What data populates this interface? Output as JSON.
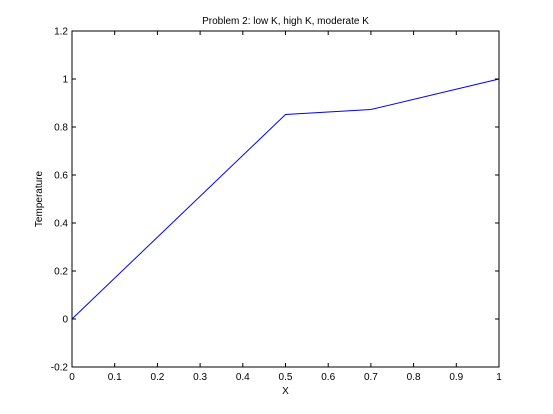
{
  "chart_data": {
    "type": "line",
    "title": "Problem 2: low K, high K, moderate K",
    "xlabel": "X",
    "ylabel": "Temperature",
    "xlim": [
      0,
      1
    ],
    "ylim": [
      -0.2,
      1.2
    ],
    "xticks": [
      0,
      0.1,
      0.2,
      0.3,
      0.4,
      0.5,
      0.6,
      0.7,
      0.8,
      0.9,
      1
    ],
    "xtick_labels": [
      "0",
      "0.1",
      "0.2",
      "0.3",
      "0.4",
      "0.5",
      "0.6",
      "0.7",
      "0.8",
      "0.9",
      "1"
    ],
    "yticks": [
      -0.2,
      0,
      0.2,
      0.4,
      0.6,
      0.8,
      1,
      1.2
    ],
    "ytick_labels": [
      "-0.2",
      "0",
      "0.2",
      "0.4",
      "0.6",
      "0.8",
      "1",
      "1.2"
    ],
    "grid": false,
    "legend": "none",
    "series": [
      {
        "color": "#0000ff",
        "x": [
          0,
          0.5,
          0.7,
          1
        ],
        "y": [
          0,
          0.852,
          0.873,
          1
        ]
      }
    ]
  }
}
